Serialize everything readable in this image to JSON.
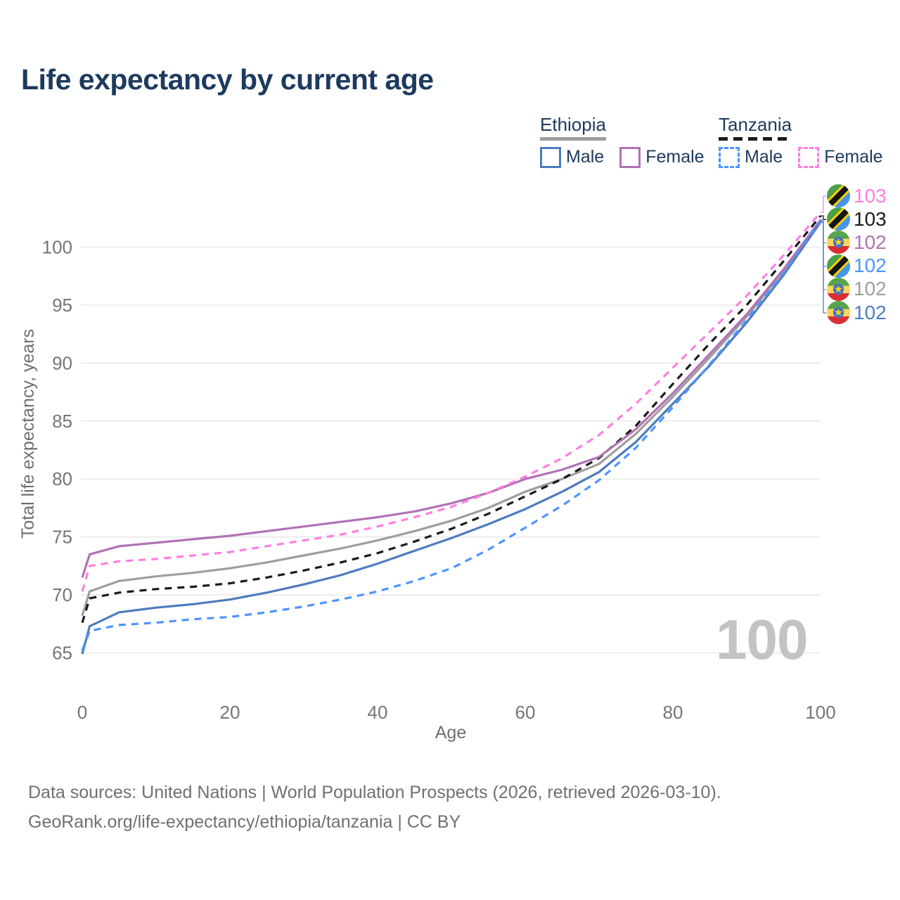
{
  "title": "Life expectancy by current age",
  "watermark": "100",
  "legend": {
    "groups": [
      {
        "label": "Ethiopia",
        "line_style": "solid",
        "underline_color": "#9e9e9e",
        "items": [
          {
            "label": "Male",
            "color": "#4d7cbe",
            "dash": false
          },
          {
            "label": "Female",
            "color": "#b172b4",
            "dash": false
          }
        ]
      },
      {
        "label": "Tanzania",
        "line_style": "dashed",
        "underline_color": "#1a1a1a",
        "items": [
          {
            "label": "Male",
            "color": "#4d94ff",
            "dash": true
          },
          {
            "label": "Female",
            "color": "#ff7ee3",
            "dash": true
          }
        ]
      }
    ]
  },
  "chart_data": {
    "type": "line",
    "title": "Life expectancy by current age",
    "xlabel": "Age",
    "ylabel": "Total life expectancy, years",
    "x_ticks": [
      0,
      20,
      40,
      60,
      80,
      100
    ],
    "y_ticks": [
      65,
      70,
      75,
      80,
      85,
      90,
      95,
      100
    ],
    "xlim": [
      0,
      100
    ],
    "ylim": [
      63,
      104
    ],
    "grid": "horizontal-only",
    "legend_position": "top-right",
    "ages": [
      0,
      1,
      5,
      10,
      15,
      20,
      25,
      30,
      35,
      40,
      45,
      50,
      55,
      60,
      65,
      70,
      75,
      80,
      85,
      90,
      95,
      100
    ],
    "series": [
      {
        "id": "ethiopia_overall",
        "name": "Ethiopia (both sexes)",
        "country": "ethiopia",
        "sex": "all",
        "color": "#9e9e9e",
        "dash": false,
        "end_label": "102",
        "values": [
          68.2,
          70.3,
          71.2,
          71.6,
          71.9,
          72.3,
          72.8,
          73.4,
          74.0,
          74.7,
          75.5,
          76.4,
          77.5,
          78.9,
          80.0,
          81.3,
          83.9,
          87.1,
          90.5,
          94.0,
          97.9,
          102.2
        ]
      },
      {
        "id": "tanzania_overall",
        "name": "Tanzania (both sexes)",
        "country": "tanzania",
        "sex": "all",
        "color": "#1a1a1a",
        "dash": true,
        "end_label": "103",
        "values": [
          67.6,
          69.7,
          70.2,
          70.5,
          70.7,
          71.0,
          71.5,
          72.1,
          72.8,
          73.6,
          74.6,
          75.7,
          77.0,
          78.5,
          80.0,
          81.8,
          84.6,
          88.2,
          91.7,
          95.0,
          98.8,
          102.7
        ]
      },
      {
        "id": "ethiopia_female",
        "name": "Ethiopia Female",
        "country": "ethiopia",
        "sex": "female",
        "color": "#b172b4",
        "dash": false,
        "end_label": "102",
        "values": [
          71.5,
          73.5,
          74.2,
          74.5,
          74.8,
          75.1,
          75.5,
          75.9,
          76.3,
          76.7,
          77.2,
          77.9,
          78.8,
          80.0,
          80.8,
          81.9,
          84.3,
          87.4,
          90.8,
          94.2,
          98.1,
          102.35
        ]
      },
      {
        "id": "tanzania_female",
        "name": "Tanzania Female",
        "country": "tanzania",
        "sex": "female",
        "color": "#ff7ee3",
        "dash": true,
        "end_label": "103",
        "values": [
          70.3,
          72.5,
          72.9,
          73.1,
          73.4,
          73.7,
          74.2,
          74.7,
          75.2,
          75.9,
          76.7,
          77.6,
          78.8,
          80.2,
          81.8,
          83.8,
          86.5,
          89.6,
          92.7,
          95.8,
          99.3,
          103.0
        ]
      },
      {
        "id": "ethiopia_male",
        "name": "Ethiopia Male",
        "country": "ethiopia",
        "sex": "male",
        "color": "#4d7cbe",
        "dash": false,
        "end_label": "102",
        "values": [
          64.9,
          67.3,
          68.5,
          68.9,
          69.2,
          69.6,
          70.2,
          70.9,
          71.7,
          72.7,
          73.8,
          74.9,
          76.1,
          77.4,
          78.9,
          80.6,
          83.2,
          86.5,
          89.8,
          93.5,
          97.6,
          102.15
        ]
      },
      {
        "id": "tanzania_male",
        "name": "Tanzania Male",
        "country": "tanzania",
        "sex": "male",
        "color": "#4d94ff",
        "dash": true,
        "end_label": "102",
        "values": [
          65.2,
          66.9,
          67.4,
          67.6,
          67.9,
          68.1,
          68.5,
          69.0,
          69.6,
          70.3,
          71.2,
          72.3,
          73.9,
          75.8,
          77.7,
          79.9,
          82.7,
          86.2,
          89.9,
          93.7,
          97.8,
          102.25
        ]
      }
    ]
  },
  "end_labels": [
    {
      "series": "tanzania_female",
      "flag": "tanzania",
      "value": "103",
      "color": "#ff7ee3"
    },
    {
      "series": "tanzania_overall",
      "flag": "tanzania",
      "value": "103",
      "color": "#1a1a1a"
    },
    {
      "series": "ethiopia_female",
      "flag": "ethiopia",
      "value": "102",
      "color": "#b172b4"
    },
    {
      "series": "tanzania_male",
      "flag": "tanzania",
      "value": "102",
      "color": "#4d94ff"
    },
    {
      "series": "ethiopia_overall",
      "flag": "ethiopia",
      "value": "102",
      "color": "#9e9e9e"
    },
    {
      "series": "ethiopia_male",
      "flag": "ethiopia",
      "value": "102",
      "color": "#4d7cbe"
    }
  ],
  "flags": {
    "tanzania": {
      "green": "#4aa147",
      "blue": "#4596ea",
      "band": "#151515",
      "band_edge": "#fdd10a"
    },
    "ethiopia": {
      "green": "#57a44c",
      "yellow": "#fdd758",
      "red": "#d92f33",
      "disc": "#3f71d0",
      "star": "#fdd10a"
    }
  },
  "footer": {
    "line1": "Data sources: United Nations | World Population Prospects (2026, retrieved 2026-03-10).",
    "line2": "GeoRank.org/life-expectancy/ethiopia/tanzania | CC BY"
  },
  "axis_colors": {
    "tick_text": "#757575",
    "axis_title": "#6f6f6f",
    "gridline": "#e8e8e8"
  }
}
